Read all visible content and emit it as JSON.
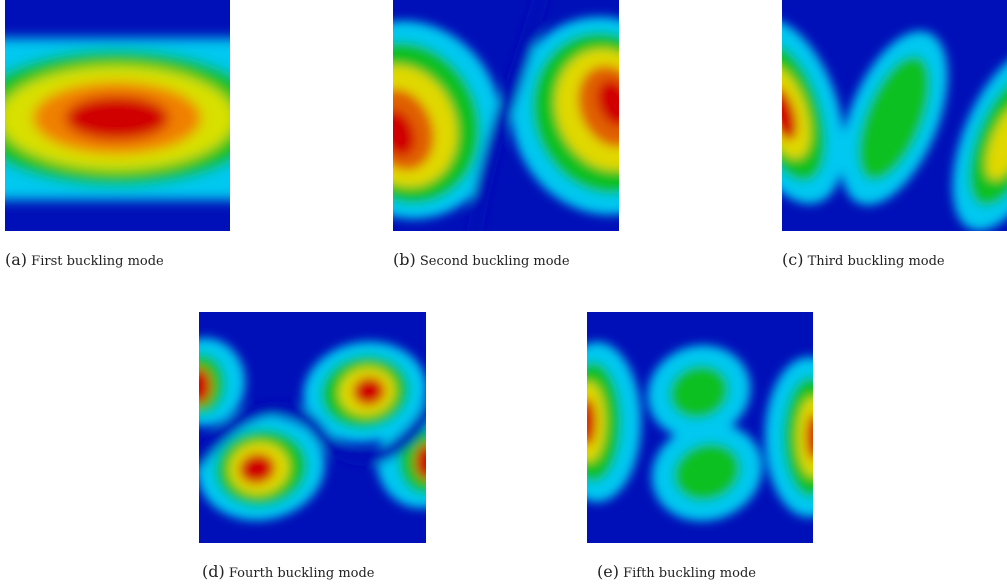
{
  "figure": {
    "panels": [
      {
        "id": "a",
        "tag": "(a)",
        "label": "First buckling mode"
      },
      {
        "id": "b",
        "tag": "(b)",
        "label": "Second buckling mode"
      },
      {
        "id": "c",
        "tag": "(c)",
        "label": "Third buckling mode"
      },
      {
        "id": "d",
        "tag": "(d)",
        "label": "Fourth buckling mode"
      },
      {
        "id": "e",
        "tag": "(e)",
        "label": "Fifth buckling mode"
      }
    ],
    "colormap": {
      "low": "#0010b8",
      "mid_low": "#00d8ff",
      "mid": "#10c020",
      "mid_high": "#f0e000",
      "high": "#d00000"
    }
  }
}
